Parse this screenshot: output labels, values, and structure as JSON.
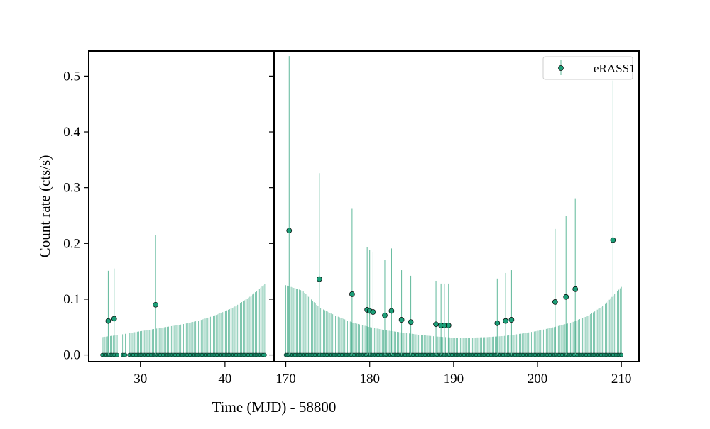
{
  "chart_data": {
    "type": "scatter",
    "xlabel": "Time (MJD) - 58800",
    "ylabel": "Count rate (cts/s)",
    "ylim": [
      -0.012,
      0.545
    ],
    "yticks": [
      0.0,
      0.1,
      0.2,
      0.3,
      0.4,
      0.5
    ],
    "ytick_labels": [
      "0.0",
      "0.1",
      "0.2",
      "0.3",
      "0.4",
      "0.5"
    ],
    "grid": false,
    "legend_position": "top-right",
    "colors": {
      "marker": "#1b9e77",
      "errorbar": "#5fb89a",
      "axes": "#000000"
    },
    "marker_color": "#1b9e77",
    "panels": [
      {
        "xlim": [
          23.9,
          45.8
        ],
        "xticks": [
          30,
          40
        ],
        "xtick_labels": [
          "30",
          "40"
        ]
      },
      {
        "xlim": [
          168.6,
          212.1
        ],
        "xticks": [
          170,
          180,
          190,
          200,
          210
        ],
        "xtick_labels": [
          "170",
          "180",
          "190",
          "200",
          "210"
        ]
      }
    ],
    "series": [
      {
        "name": "eRASS1",
        "upper_limit_curve": {
          "x": [
            25.5,
            27.5,
            29,
            31,
            33,
            35,
            37,
            39,
            41,
            43,
            44.8,
            170,
            172,
            174,
            176,
            178,
            180,
            182,
            184,
            186,
            188,
            190,
            192,
            194,
            196,
            198,
            200,
            202,
            204,
            206,
            208,
            210
          ],
          "y": [
            0.032,
            0.036,
            0.04,
            0.045,
            0.05,
            0.055,
            0.062,
            0.072,
            0.085,
            0.105,
            0.128,
            0.125,
            0.115,
            0.085,
            0.07,
            0.058,
            0.05,
            0.044,
            0.04,
            0.036,
            0.033,
            0.031,
            0.031,
            0.032,
            0.034,
            0.038,
            0.043,
            0.05,
            0.058,
            0.07,
            0.09,
            0.122
          ]
        },
        "detections": [
          {
            "x": 26.2,
            "y": 0.061,
            "err": 0.09
          },
          {
            "x": 26.9,
            "y": 0.065,
            "err": 0.09
          },
          {
            "x": 31.8,
            "y": 0.09,
            "err": 0.125
          },
          {
            "x": 170.4,
            "y": 0.223,
            "err": 0.313
          },
          {
            "x": 174.0,
            "y": 0.136,
            "err": 0.19
          },
          {
            "x": 177.9,
            "y": 0.109,
            "err": 0.153
          },
          {
            "x": 179.7,
            "y": 0.081,
            "err": 0.113
          },
          {
            "x": 180.0,
            "y": 0.079,
            "err": 0.11
          },
          {
            "x": 180.4,
            "y": 0.077,
            "err": 0.108
          },
          {
            "x": 181.8,
            "y": 0.071,
            "err": 0.1
          },
          {
            "x": 182.6,
            "y": 0.079,
            "err": 0.112
          },
          {
            "x": 183.8,
            "y": 0.063,
            "err": 0.089
          },
          {
            "x": 184.9,
            "y": 0.059,
            "err": 0.083
          },
          {
            "x": 187.9,
            "y": 0.055,
            "err": 0.078
          },
          {
            "x": 188.5,
            "y": 0.053,
            "err": 0.075
          },
          {
            "x": 188.9,
            "y": 0.053,
            "err": 0.075
          },
          {
            "x": 189.4,
            "y": 0.053,
            "err": 0.075
          },
          {
            "x": 195.2,
            "y": 0.057,
            "err": 0.08
          },
          {
            "x": 196.2,
            "y": 0.061,
            "err": 0.086
          },
          {
            "x": 196.9,
            "y": 0.063,
            "err": 0.089
          },
          {
            "x": 202.1,
            "y": 0.095,
            "err": 0.131
          },
          {
            "x": 203.4,
            "y": 0.104,
            "err": 0.146
          },
          {
            "x": 204.5,
            "y": 0.118,
            "err": 0.163
          },
          {
            "x": 209.0,
            "y": 0.206,
            "err": 0.286
          }
        ]
      }
    ]
  }
}
